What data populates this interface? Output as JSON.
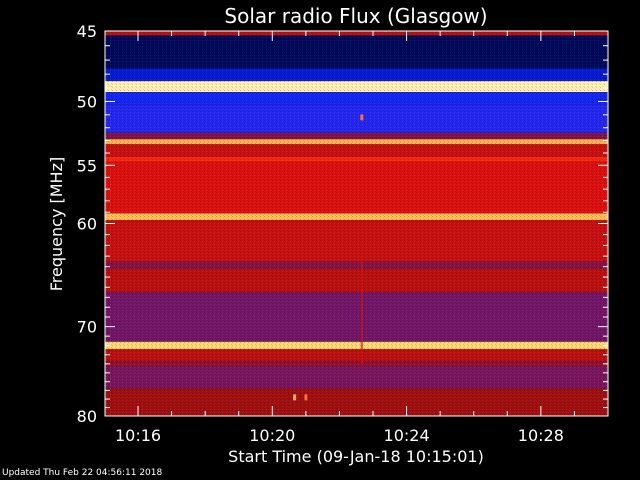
{
  "chart_data": {
    "type": "heatmap",
    "title": "Solar radio Flux (Glasgow)",
    "xlabel": "Start Time (09-Jan-18 10:15:01)",
    "ylabel": "Frequency [MHz]",
    "x_range_minutes": [
      "10:15:01",
      "10:30:00"
    ],
    "xlim": [
      "10:15:01",
      "10:30:00"
    ],
    "ylim": [
      45,
      80
    ],
    "y_scale": "log",
    "x_ticks": [
      "10:16",
      "10:20",
      "10:24",
      "10:28"
    ],
    "y_ticks": [
      45,
      50,
      55,
      60,
      70,
      80
    ],
    "colormap": [
      "#000010",
      "#0018c8",
      "#1a2aff",
      "#5a1a9a",
      "#a01010",
      "#e01010",
      "#ff3010",
      "#ffd060",
      "#fff4c0"
    ],
    "bands": [
      {
        "from": 45.0,
        "to": 45.3,
        "level": 0.55
      },
      {
        "from": 45.3,
        "to": 47.6,
        "level": 0.05
      },
      {
        "from": 47.6,
        "to": 48.5,
        "level": 0.15
      },
      {
        "from": 48.5,
        "to": 49.3,
        "level": 0.98
      },
      {
        "from": 49.3,
        "to": 50.2,
        "level": 0.22
      },
      {
        "from": 50.2,
        "to": 52.4,
        "level": 0.27
      },
      {
        "from": 52.4,
        "to": 52.9,
        "level": 0.45
      },
      {
        "from": 52.9,
        "to": 53.3,
        "level": 0.85
      },
      {
        "from": 53.3,
        "to": 54.3,
        "level": 0.58
      },
      {
        "from": 54.3,
        "to": 54.7,
        "level": 0.72
      },
      {
        "from": 54.7,
        "to": 59.1,
        "level": 0.62
      },
      {
        "from": 59.1,
        "to": 59.7,
        "level": 0.86
      },
      {
        "from": 59.7,
        "to": 63.5,
        "level": 0.58
      },
      {
        "from": 63.5,
        "to": 64.2,
        "level": 0.45
      },
      {
        "from": 64.2,
        "to": 66.5,
        "level": 0.55
      },
      {
        "from": 66.5,
        "to": 71.6,
        "level": 0.42
      },
      {
        "from": 71.6,
        "to": 72.4,
        "level": 0.9
      },
      {
        "from": 72.4,
        "to": 73.7,
        "level": 0.55
      },
      {
        "from": 73.7,
        "to": 74.3,
        "level": 0.47
      },
      {
        "from": 74.3,
        "to": 76.8,
        "level": 0.43
      },
      {
        "from": 76.8,
        "to": 80.0,
        "level": 0.5
      }
    ],
    "features": [
      {
        "type": "spike",
        "time": "10:22:40",
        "freq": 51.2,
        "level": 0.8
      },
      {
        "type": "burst",
        "time": "10:20:40",
        "freq": 77.8,
        "level": 0.85
      },
      {
        "type": "burst",
        "time": "10:21:00",
        "freq": 77.8,
        "level": 0.8
      },
      {
        "type": "streak",
        "time": "10:22:40",
        "freq_from": 63.0,
        "freq_to": 74.0,
        "level": 0.6
      }
    ]
  },
  "footer": {
    "updated_text": "Updated Thu Feb 22 04:56:11 2018"
  }
}
